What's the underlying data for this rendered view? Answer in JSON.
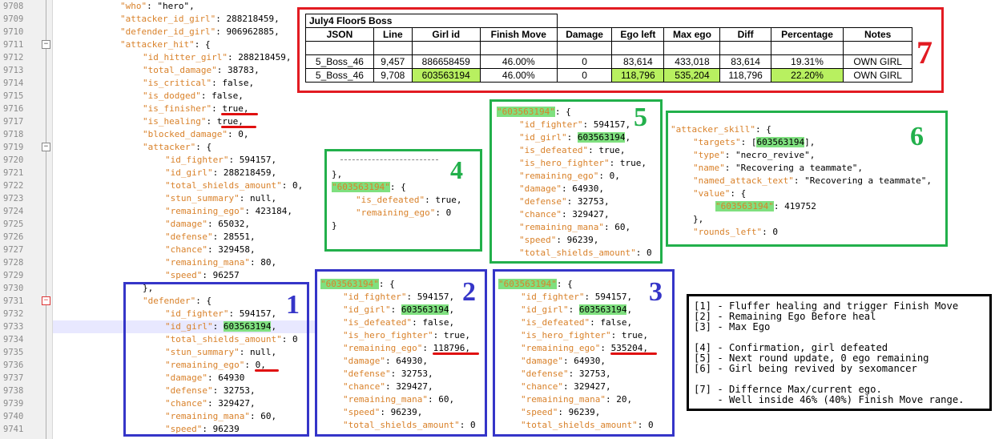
{
  "line_numbers": [
    "9708",
    "9709",
    "9710",
    "9711",
    "9712",
    "9713",
    "9714",
    "9715",
    "9716",
    "9717",
    "9718",
    "9719",
    "9720",
    "9721",
    "9722",
    "9723",
    "9724",
    "9725",
    "9726",
    "9727",
    "9728",
    "9729",
    "9730",
    "9731",
    "9732",
    "9733",
    "9734",
    "9735",
    "9736",
    "9737",
    "9738",
    "9739",
    "9740",
    "9741"
  ],
  "code": {
    "who_key": "\"who\"",
    "who_val": ": \"hero\",",
    "att_id_key": "\"attacker_id_girl\"",
    "att_id_val": ": 288218459,",
    "def_id_key": "\"defender_id_girl\"",
    "def_id_val": ": 906962885,",
    "att_hit_key": "\"attacker_hit\"",
    "att_hit_val": ": {",
    "id_hitter_key": "\"id_hitter_girl\"",
    "id_hitter_val": ": 288218459,",
    "total_damage_key": "\"total_damage\"",
    "total_damage_val": ": 38783,",
    "is_critical_key": "\"is_critical\"",
    "is_critical_val": ": false,",
    "is_dodged_key": "\"is_dodged\"",
    "is_dodged_val": ": false,",
    "is_finisher_key": "\"is_finisher\"",
    "is_finisher_val": ": true,",
    "is_healing_key": "\"is_healing\"",
    "is_healing_val": ": true,",
    "blocked_key": "\"blocked_damage\"",
    "blocked_val": ": 0,",
    "attacker_key": "\"attacker\"",
    "attacker_val": ": {",
    "a_fighter_key": "\"id_fighter\"",
    "a_fighter_val": ": 594157,",
    "a_girl_key": "\"id_girl\"",
    "a_girl_val": ": 288218459,",
    "a_shield_key": "\"total_shields_amount\"",
    "a_shield_val": ": 0,",
    "a_stun_key": "\"stun_summary\"",
    "a_stun_val": ": null,",
    "a_ego_key": "\"remaining_ego\"",
    "a_ego_val": ": 423184,",
    "a_damage_key": "\"damage\"",
    "a_damage_val": ": 65032,",
    "a_defense_key": "\"defense\"",
    "a_defense_val": ": 28551,",
    "a_chance_key": "\"chance\"",
    "a_chance_val": ": 329458,",
    "a_mana_key": "\"remaining_mana\"",
    "a_mana_val": ": 80,",
    "a_speed_key": "\"speed\"",
    "a_speed_val": ": 96257",
    "close_brace": "},",
    "defender_key": "\"defender\"",
    "defender_val": ": {",
    "d_fighter_key": "\"id_fighter\"",
    "d_fighter_val": ": 594157,",
    "d_girl_key": "\"id_girl\"",
    "d_girl_val": "603563194",
    "comma": ",",
    "d_shield_key": "\"total_shields_amount\"",
    "d_shield_val": ": 0",
    "d_stun_key": "\"stun_summary\"",
    "d_stun_val": ": null,",
    "d_ego_key": "\"remaining_ego\"",
    "d_ego_val": ": 0,",
    "d_damage_key": "\"damage\"",
    "d_damage_val": ": 64930",
    "d_defense_key": "\"defense\"",
    "d_defense_val": ": 32753,",
    "d_chance_key": "\"chance\"",
    "d_chance_val": ": 329427,",
    "d_mana_key": "\"remaining_mana\"",
    "d_mana_val": ": 60,",
    "d_speed_key": "\"speed\"",
    "d_speed_val": ": 96239"
  },
  "sheet": {
    "title": "July4  Floor5  Boss",
    "headers": [
      "JSON",
      "Line",
      "Girl id",
      "Finish Move",
      "Damage",
      "Ego left",
      "Max ego",
      "Diff",
      "Percentage",
      "Notes"
    ],
    "rows": [
      [
        "5_Boss_46",
        "9,457",
        "886658459",
        "46.00%",
        "0",
        "83,614",
        "433,018",
        "83,614",
        "19.31%",
        "OWN GIRL"
      ],
      [
        "5_Boss_46",
        "9,708",
        "603563194",
        "46.00%",
        "0",
        "118,796",
        "535,204",
        "118,796",
        "22.20%",
        "OWN GIRL"
      ]
    ]
  },
  "snip1": {
    "number": "1"
  },
  "snip2": {
    "number": "2",
    "key": "\"603563194\"",
    "open": ": {",
    "fighter_k": "\"id_fighter\"",
    "fighter_v": ": 594157,",
    "girl_k": "\"id_girl\"",
    "girl_v": "603563194",
    "comma": ",",
    "defeated_k": "\"is_defeated\"",
    "defeated_v": ": false,",
    "hero_k": "\"is_hero_fighter\"",
    "hero_v": ": true,",
    "ego_k": "\"remaining_ego\"",
    "ego_v": ": 118796,",
    "damage_k": "\"damage\"",
    "damage_v": ": 64930,",
    "defense_k": "\"defense\"",
    "defense_v": ": 32753,",
    "chance_k": "\"chance\"",
    "chance_v": ": 329427,",
    "mana_k": "\"remaining_mana\"",
    "mana_v": ": 60,",
    "speed_k": "\"speed\"",
    "speed_v": ": 96239,",
    "shield_k": "\"total_shields_amount\"",
    "shield_v": ": 0"
  },
  "snip3": {
    "number": "3",
    "key": "\"603563194\"",
    "open": ": {",
    "fighter_k": "\"id_fighter\"",
    "fighter_v": ": 594157,",
    "girl_k": "\"id_girl\"",
    "girl_v": "603563194",
    "comma": ",",
    "defeated_k": "\"is_defeated\"",
    "defeated_v": ": false,",
    "hero_k": "\"is_hero_fighter\"",
    "hero_v": ": true,",
    "ego_k": "\"remaining_ego\"",
    "ego_v": ": 535204,",
    "damage_k": "\"damage\"",
    "damage_v": ": 64930,",
    "defense_k": "\"defense\"",
    "defense_v": ": 32753,",
    "chance_k": "\"chance\"",
    "chance_v": ": 329427,",
    "mana_k": "\"remaining_mana\"",
    "mana_v": ": 20,",
    "speed_k": "\"speed\"",
    "speed_v": ": 96239,",
    "shield_k": "\"total_shields_amount\"",
    "shield_v": ": 0"
  },
  "snip4": {
    "number": "4",
    "close": "},",
    "key": "\"603563194\"",
    "open": ": {",
    "defeated_k": "\"is_defeated\"",
    "defeated_v": ": true,",
    "ego_k": "\"remaining_ego\"",
    "ego_v": ": 0",
    "end": "}"
  },
  "snip5": {
    "number": "5",
    "key": "\"603563194\"",
    "open": ": {",
    "fighter_k": "\"id_fighter\"",
    "fighter_v": ": 594157,",
    "girl_k": "\"id_girl\"",
    "girl_v": "603563194",
    "comma": ",",
    "defeated_k": "\"is_defeated\"",
    "defeated_v": ": true,",
    "hero_k": "\"is_hero_fighter\"",
    "hero_v": ": true,",
    "ego_k": "\"remaining_ego\"",
    "ego_v": ": 0,",
    "damage_k": "\"damage\"",
    "damage_v": ": 64930,",
    "defense_k": "\"defense\"",
    "defense_v": ": 32753,",
    "chance_k": "\"chance\"",
    "chance_v": ": 329427,",
    "mana_k": "\"remaining_mana\"",
    "mana_v": ": 60,",
    "speed_k": "\"speed\"",
    "speed_v": ": 96239,",
    "shield_k": "\"total_shields_amount\"",
    "shield_v": ": 0"
  },
  "snip6": {
    "number": "6",
    "skill_k": "\"attacker_skill\"",
    "skill_v": ": {",
    "targets_k": "\"targets\"",
    "targets_open": ": [",
    "targets_id": "603563194",
    "targets_close": "],",
    "type_k": "\"type\"",
    "type_v": ": \"necro_revive\",",
    "name_k": "\"name\"",
    "name_v": ": \"Recovering a teammate\",",
    "named_k": "\"named_attack_text\"",
    "named_v": ": \"Recovering a teammate\",",
    "value_k": "\"value\"",
    "value_v": ": {",
    "vkey": "\"603563194\"",
    "vval": ": 419752",
    "close": "},",
    "rounds_k": "\"rounds_left\"",
    "rounds_v": ": 0"
  },
  "snip7": {
    "number": "7"
  },
  "legend": [
    "[1] - Fluffer healing and trigger Finish Move",
    "[2] - Remaining Ego Before heal",
    "[3] - Max Ego",
    "",
    "[4] - Confirmation, girl defeated",
    "[5] - Next round update, 0 ego remaining",
    "[6] - Girl being revived by sexomancer",
    "",
    "[7] - Differnce Max/current ego.",
    "    - Well inside 46% (40%) Finish Move range."
  ],
  "colors": {
    "blue": "#3535c8",
    "green": "#22b04b",
    "red": "#e21b22",
    "highlight": "#7fe07f",
    "key": "#d9822b"
  }
}
